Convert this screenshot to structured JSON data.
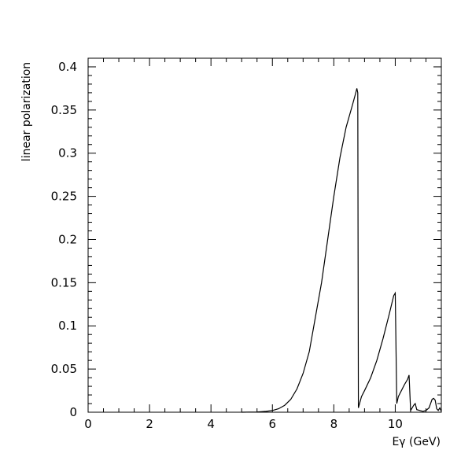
{
  "chart_data": {
    "type": "line",
    "title": "",
    "xlabel": "Eγ (GeV)",
    "ylabel": "linear polarization",
    "xlim": [
      0,
      11.5
    ],
    "ylim": [
      0,
      0.41
    ],
    "x_ticks": [
      0,
      2,
      4,
      6,
      8,
      10
    ],
    "x_tick_labels": [
      "0",
      "2",
      "4",
      "6",
      "8",
      "10"
    ],
    "y_ticks": [
      0,
      0.05,
      0.1,
      0.15,
      0.2,
      0.25,
      0.3,
      0.35,
      0.4
    ],
    "y_tick_labels": [
      "0",
      "0.05",
      "0.1",
      "0.15",
      "0.2",
      "0.25",
      "0.3",
      "0.35",
      "0.4"
    ],
    "grid": false,
    "legend": "none",
    "line_color": "#000000",
    "series": [
      {
        "x": [
          5.0,
          5.5,
          5.8,
          6.0,
          6.2,
          6.4,
          6.6,
          6.8,
          7.0,
          7.2,
          7.4,
          7.6,
          7.8,
          8.0,
          8.2,
          8.4,
          8.6,
          8.7,
          8.75,
          8.78,
          8.8,
          8.9,
          9.0,
          9.2,
          9.4,
          9.6,
          9.8,
          9.95,
          10.0,
          10.05,
          10.1,
          10.2,
          10.3,
          10.4,
          10.45,
          10.5,
          10.55,
          10.6,
          10.65,
          10.7,
          10.8,
          10.9,
          11.0,
          11.1,
          11.15,
          11.2,
          11.25,
          11.3,
          11.35,
          11.4,
          11.45,
          11.5
        ],
        "y": [
          0.0,
          0.0003,
          0.001,
          0.002,
          0.004,
          0.008,
          0.015,
          0.027,
          0.045,
          0.07,
          0.11,
          0.15,
          0.2,
          0.25,
          0.295,
          0.33,
          0.355,
          0.368,
          0.375,
          0.37,
          0.005,
          0.018,
          0.025,
          0.04,
          0.06,
          0.085,
          0.113,
          0.135,
          0.138,
          0.01,
          0.018,
          0.025,
          0.032,
          0.038,
          0.043,
          0.002,
          0.005,
          0.008,
          0.01,
          0.003,
          0.002,
          0.001,
          0.002,
          0.005,
          0.01,
          0.015,
          0.016,
          0.014,
          0.004,
          0.002,
          0.005,
          0.001
        ]
      }
    ]
  }
}
